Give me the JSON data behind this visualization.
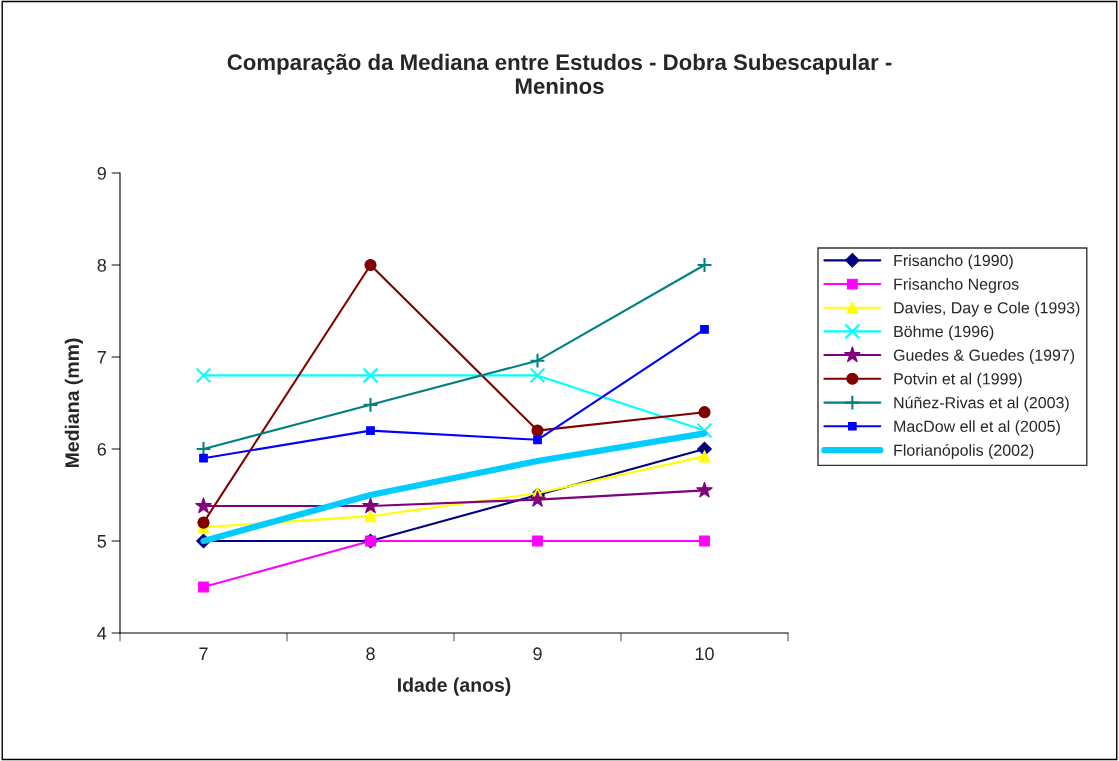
{
  "chart_data": {
    "type": "line",
    "title": "Comparação da Mediana entre Estudos - Dobra Subescapular -\nMeninos",
    "xlabel": "Idade (anos)",
    "ylabel": "Mediana (mm)",
    "categories": [
      "7",
      "8",
      "9",
      "10"
    ],
    "ylim": [
      4,
      9
    ],
    "yticks": [
      4,
      5,
      6,
      7,
      8,
      9
    ],
    "grid": false,
    "legend": "right",
    "series": [
      {
        "name": "Frisancho (1990)",
        "color": "#000080",
        "marker": "diamond",
        "values": [
          5.0,
          5.0,
          5.5,
          6.0
        ]
      },
      {
        "name": "Frisancho Negros",
        "color": "#ff00ff",
        "marker": "square",
        "values": [
          4.5,
          5.0,
          5.0,
          5.0
        ]
      },
      {
        "name": "Davies, Day e Cole (1993)",
        "color": "#ffff00",
        "marker": "triangle",
        "values": [
          5.15,
          5.27,
          5.52,
          5.92
        ]
      },
      {
        "name": "Böhme (1996)",
        "color": "#00ffff",
        "marker": "cross",
        "values": [
          6.8,
          6.8,
          6.8,
          6.2
        ]
      },
      {
        "name": "Guedes & Guedes (1997)",
        "color": "#800080",
        "marker": "star",
        "values": [
          5.38,
          5.38,
          5.45,
          5.55
        ]
      },
      {
        "name": "Potvin et al (1999)",
        "color": "#800000",
        "marker": "circle",
        "values": [
          5.2,
          8.0,
          6.2,
          6.4
        ]
      },
      {
        "name": "Núñez-Rivas et al (2003)",
        "color": "#008080",
        "marker": "cross",
        "values": [
          6.0,
          6.48,
          6.96,
          8.0
        ]
      },
      {
        "name": "MacDow ell et al (2005)",
        "color": "#0000ff",
        "marker": "square",
        "values": [
          5.9,
          6.2,
          6.1,
          7.3
        ]
      },
      {
        "name": "Florianópolis (2002)",
        "color": "#00ccff",
        "marker": "none",
        "values": [
          5.0,
          5.5,
          5.87,
          6.17
        ]
      }
    ]
  }
}
